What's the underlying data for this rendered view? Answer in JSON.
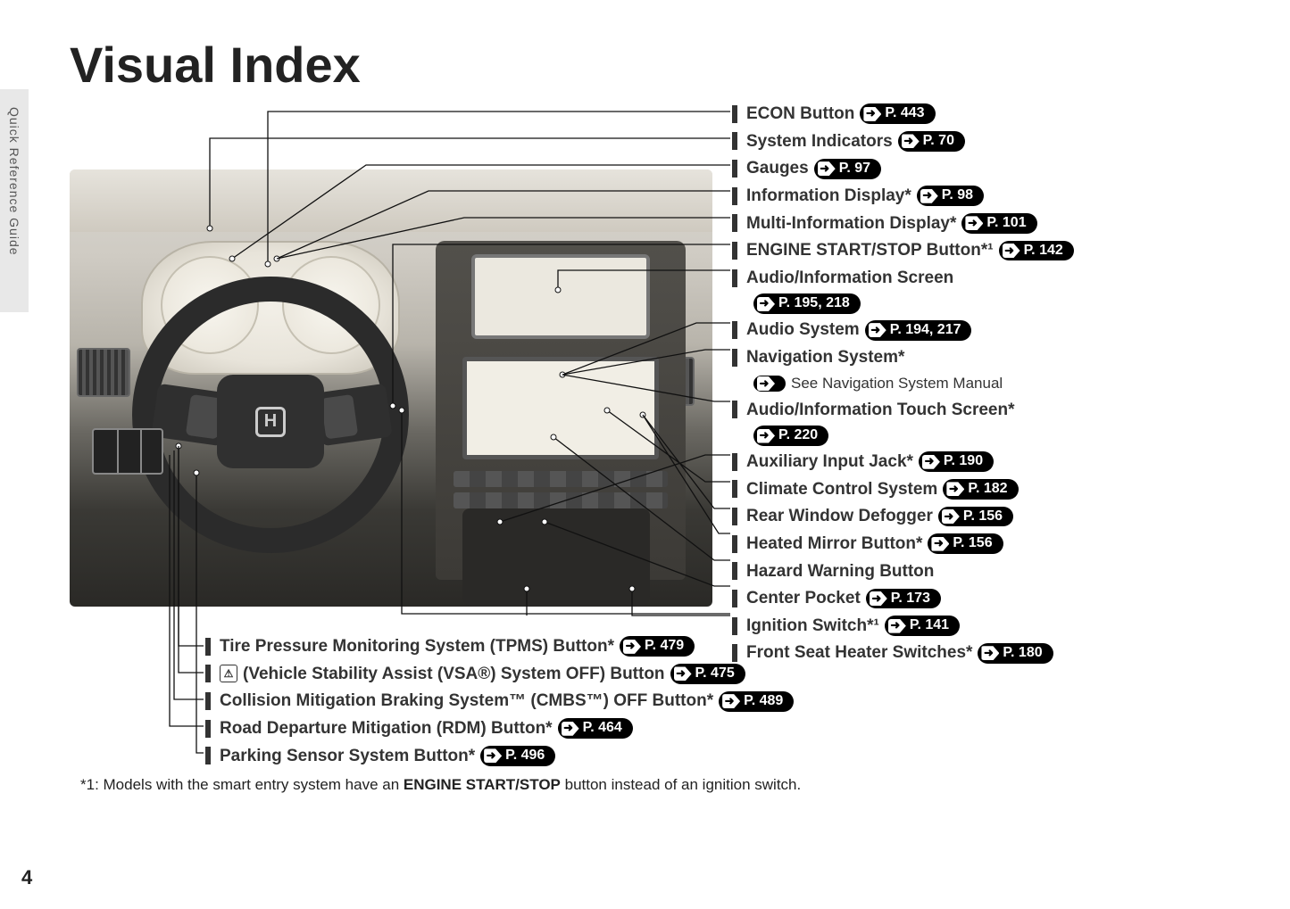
{
  "page": {
    "title": "Visual Index",
    "side_tab": "Quick Reference Guide",
    "page_number": "4",
    "footnote_prefix": "*1: Models with the smart entry system have an ",
    "footnote_bold": "ENGINE START/STOP",
    "footnote_suffix": " button instead of an ignition switch."
  },
  "right_callouts": [
    {
      "label": "ECON Button",
      "page": "P. 443"
    },
    {
      "label": "System Indicators",
      "page": "P. 70"
    },
    {
      "label": "Gauges",
      "page": "P. 97"
    },
    {
      "label": "Information Display*",
      "page": "P. 98"
    },
    {
      "label": "Multi-Information Display*",
      "page": "P. 101"
    },
    {
      "label": "ENGINE START/STOP Button*¹",
      "page": "P. 142"
    },
    {
      "label": "Audio/Information Screen",
      "page": ""
    },
    {
      "label": "",
      "page": "P. 195, 218",
      "indent": true
    },
    {
      "label": "Audio System",
      "page": "P. 194, 217"
    },
    {
      "label": "Navigation System*",
      "page": ""
    },
    {
      "label": "",
      "page": "",
      "see": "See Navigation System Manual",
      "indent": true
    },
    {
      "label": "Audio/Information Touch Screen*",
      "page": ""
    },
    {
      "label": "",
      "page": "P. 220",
      "indent": true
    },
    {
      "label": "Auxiliary Input Jack*",
      "page": "P. 190"
    },
    {
      "label": "Climate Control System",
      "page": "P. 182"
    },
    {
      "label": "Rear Window Defogger",
      "page": "P. 156"
    },
    {
      "label": "Heated Mirror Button*",
      "page": "P. 156"
    },
    {
      "label": "Hazard Warning Button",
      "page": ""
    },
    {
      "label": "Center Pocket",
      "page": "P. 173"
    },
    {
      "label": "Ignition Switch*¹",
      "page": "P. 141"
    },
    {
      "label": "Front Seat Heater Switches*",
      "page": "P. 180"
    }
  ],
  "bottom_callouts": [
    {
      "label": "Tire Pressure Monitoring System (TPMS) Button*",
      "page": "P. 479"
    },
    {
      "label": "(Vehicle Stability Assist (VSA®) System OFF) Button",
      "page": "P. 475",
      "pre_icon": "⚠"
    },
    {
      "label": "Collision Mitigation Braking System™ (CMBS™) OFF Button*",
      "page": "P. 489"
    },
    {
      "label": "Road Departure Mitigation (RDM) Button*",
      "page": "P. 464"
    },
    {
      "label": "Parking Sensor System Button*",
      "page": "P. 496"
    }
  ],
  "style": {
    "title_fontsize_pt": 42,
    "callout_fontsize_pt": 14,
    "pill_bg": "#000000",
    "pill_fg": "#ffffff",
    "text_color": "#333333",
    "side_tab_bg": "#e8e8e8",
    "page_bg": "#ffffff"
  }
}
